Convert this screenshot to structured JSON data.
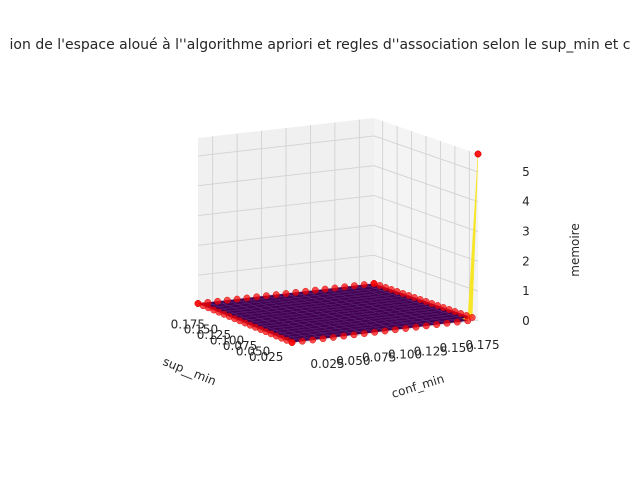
{
  "chart_data": {
    "type": "surface3d",
    "title": "ion de l'espace aloué à l''algorithme apriori et regles d''association selon le sup_min et c",
    "xlabel": "sup__min",
    "ylabel": "conf_min",
    "zlabel": "memoire",
    "xlim": [
      0.01,
      0.19
    ],
    "ylim": [
      0.01,
      0.19
    ],
    "zlim": [
      0,
      5.6
    ],
    "xticks": [
      "0.025",
      "0.050",
      "0.075",
      "0.100",
      "0.125",
      "0.150",
      "0.175"
    ],
    "yticks": [
      "0.025",
      "0.050",
      "0.075",
      "0.100",
      "0.125",
      "0.150",
      "0.175"
    ],
    "zticks": [
      "0",
      "1",
      "2",
      "3",
      "4",
      "5"
    ],
    "x": [
      0.01,
      0.02,
      0.03,
      0.04,
      0.05,
      0.06,
      0.07,
      0.08,
      0.09,
      0.1,
      0.11,
      0.12,
      0.13,
      0.14,
      0.15,
      0.16,
      0.17,
      0.18,
      0.19
    ],
    "y": [
      0.01,
      0.02,
      0.03,
      0.04,
      0.05,
      0.06,
      0.07,
      0.08,
      0.09,
      0.1,
      0.11,
      0.12,
      0.13,
      0.14,
      0.15,
      0.16,
      0.17,
      0.18,
      0.19
    ],
    "peak": {
      "x": 0.01,
      "y": 0.19,
      "z": 5.6
    },
    "baseline_z": 0.05,
    "grid": true,
    "colormap": "viridis",
    "scatter_color": "#ff0000"
  }
}
